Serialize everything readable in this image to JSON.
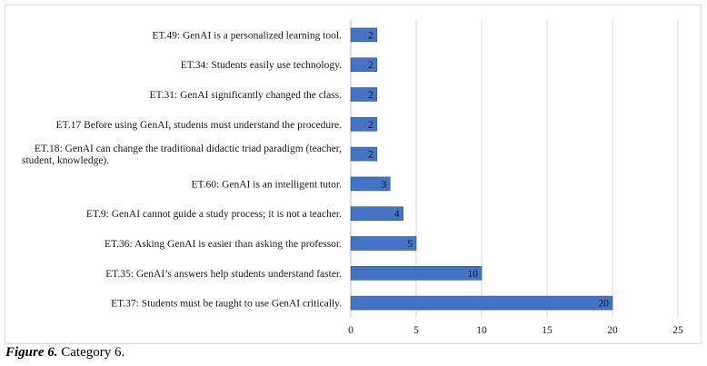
{
  "caption": {
    "figure_label": "Figure 6.",
    "text": " Category 6."
  },
  "chart_data": {
    "type": "bar",
    "orientation": "horizontal",
    "categories": [
      [
        "ET.49: GenAI is a personalized learning tool."
      ],
      [
        "ET.34: Students easily use technology."
      ],
      [
        "ET.31: GenAI significantly changed the class."
      ],
      [
        "ET.17 Before using GenAI, students must understand the procedure."
      ],
      [
        "ET.18: GenAI can change the traditional didactic triad paradigm (teacher,",
        "student, knowledge)."
      ],
      [
        "ET.60: GenAI is an intelligent tutor."
      ],
      [
        "ET.9: GenAI cannot guide a study process; it is not a teacher."
      ],
      [
        "ET.36: Asking GenAI is easier than asking the professor."
      ],
      [
        "ET.35: GenAI’s answers help students understand faster."
      ],
      [
        "ET.37: Students must be taught to use GenAI critically."
      ]
    ],
    "values": [
      2,
      2,
      2,
      2,
      2,
      3,
      4,
      5,
      10,
      20
    ],
    "xlim": [
      0,
      25
    ],
    "xticks": [
      0,
      5,
      10,
      15,
      20,
      25
    ],
    "grid": true,
    "bar_color": "#4472C4",
    "data_labels": true
  }
}
